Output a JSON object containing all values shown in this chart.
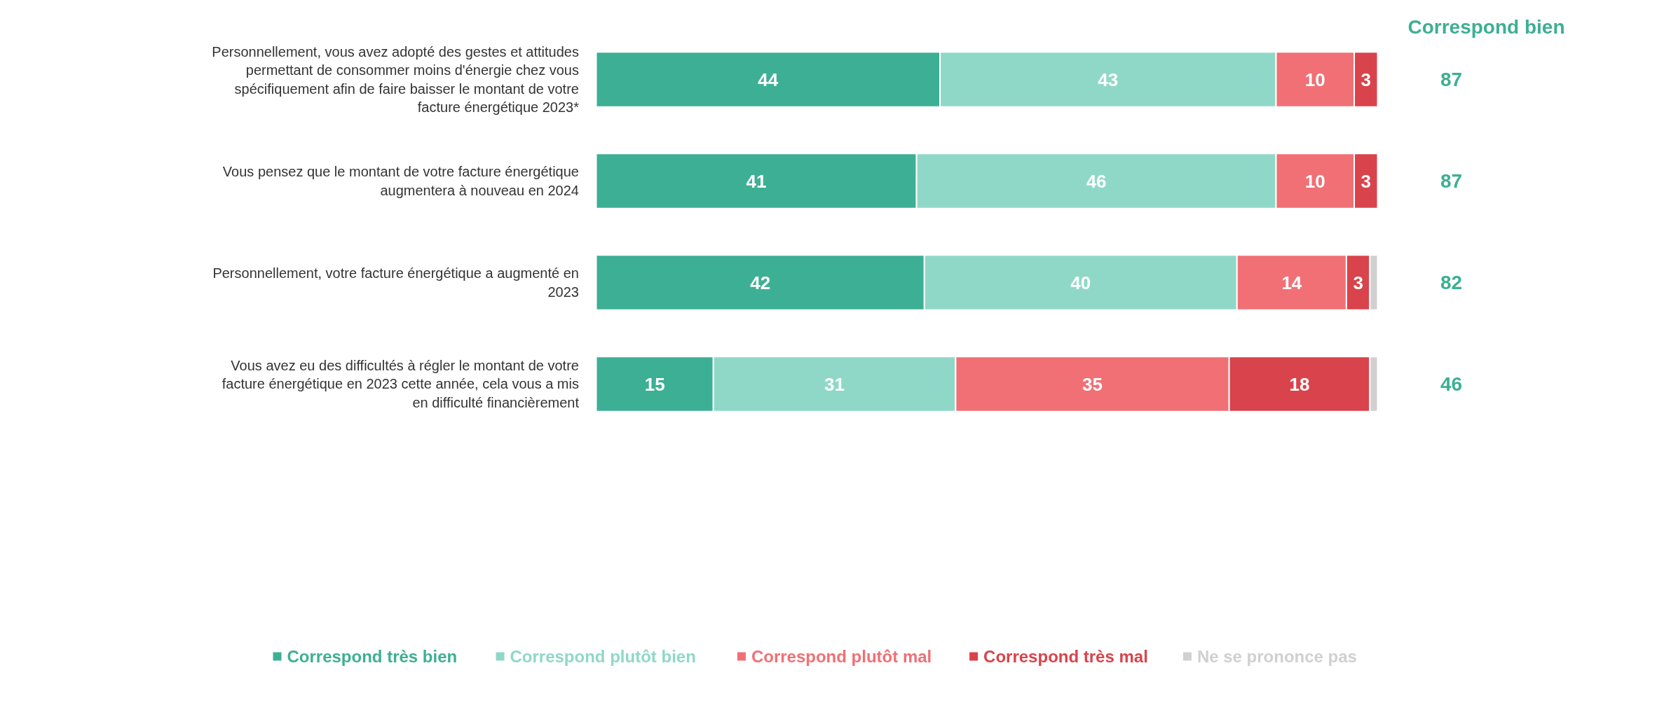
{
  "chart_data": {
    "type": "bar",
    "orientation": "horizontal",
    "stacked": true,
    "categories": [
      "Personnellement, vous avez adopté des gestes et attitudes permettant de consommer moins d'énergie chez vous spécifiquement afin de faire baisser le montant de votre facture énergétique 2023*",
      "Vous pensez que le montant de votre facture énergétique augmentera à nouveau en 2024",
      "Personnellement, votre facture énergétique a augmenté en 2023",
      "Vous avez eu des difficultés à régler le montant de votre facture énergétique en 2023 cette année, cela vous a mis en difficulté financièrement"
    ],
    "series": [
      {
        "name": "Correspond très bien",
        "color": "#3daf94",
        "values": [
          44,
          41,
          42,
          15
        ],
        "value_labels": [
          "44",
          "41",
          "42",
          "15"
        ]
      },
      {
        "name": "Correspond plutôt bien",
        "color": "#8fd8c8",
        "values": [
          43,
          46,
          40,
          31
        ],
        "value_labels": [
          "43",
          "46",
          "40",
          "31"
        ]
      },
      {
        "name": "Correspond plutôt mal",
        "color": "#f07075",
        "values": [
          10,
          10,
          14,
          35
        ],
        "value_labels": [
          "10",
          "10",
          "14",
          "35"
        ]
      },
      {
        "name": "Correspond très mal",
        "color": "#d9434b",
        "values": [
          3,
          3,
          3,
          18
        ],
        "value_labels": [
          "3",
          "3",
          "3",
          "18"
        ]
      },
      {
        "name": "Ne se prononce pas",
        "color": "#d0d0d0",
        "values": [
          null,
          null,
          1,
          1
        ],
        "value_labels": [
          null,
          null,
          null,
          null
        ]
      }
    ],
    "xlim": [
      0,
      100
    ],
    "tick_labels": false,
    "grid": false,
    "legend": "bottom",
    "annotations": [
      "Correspond bien",
      "87",
      "87",
      "82",
      "46"
    ]
  }
}
